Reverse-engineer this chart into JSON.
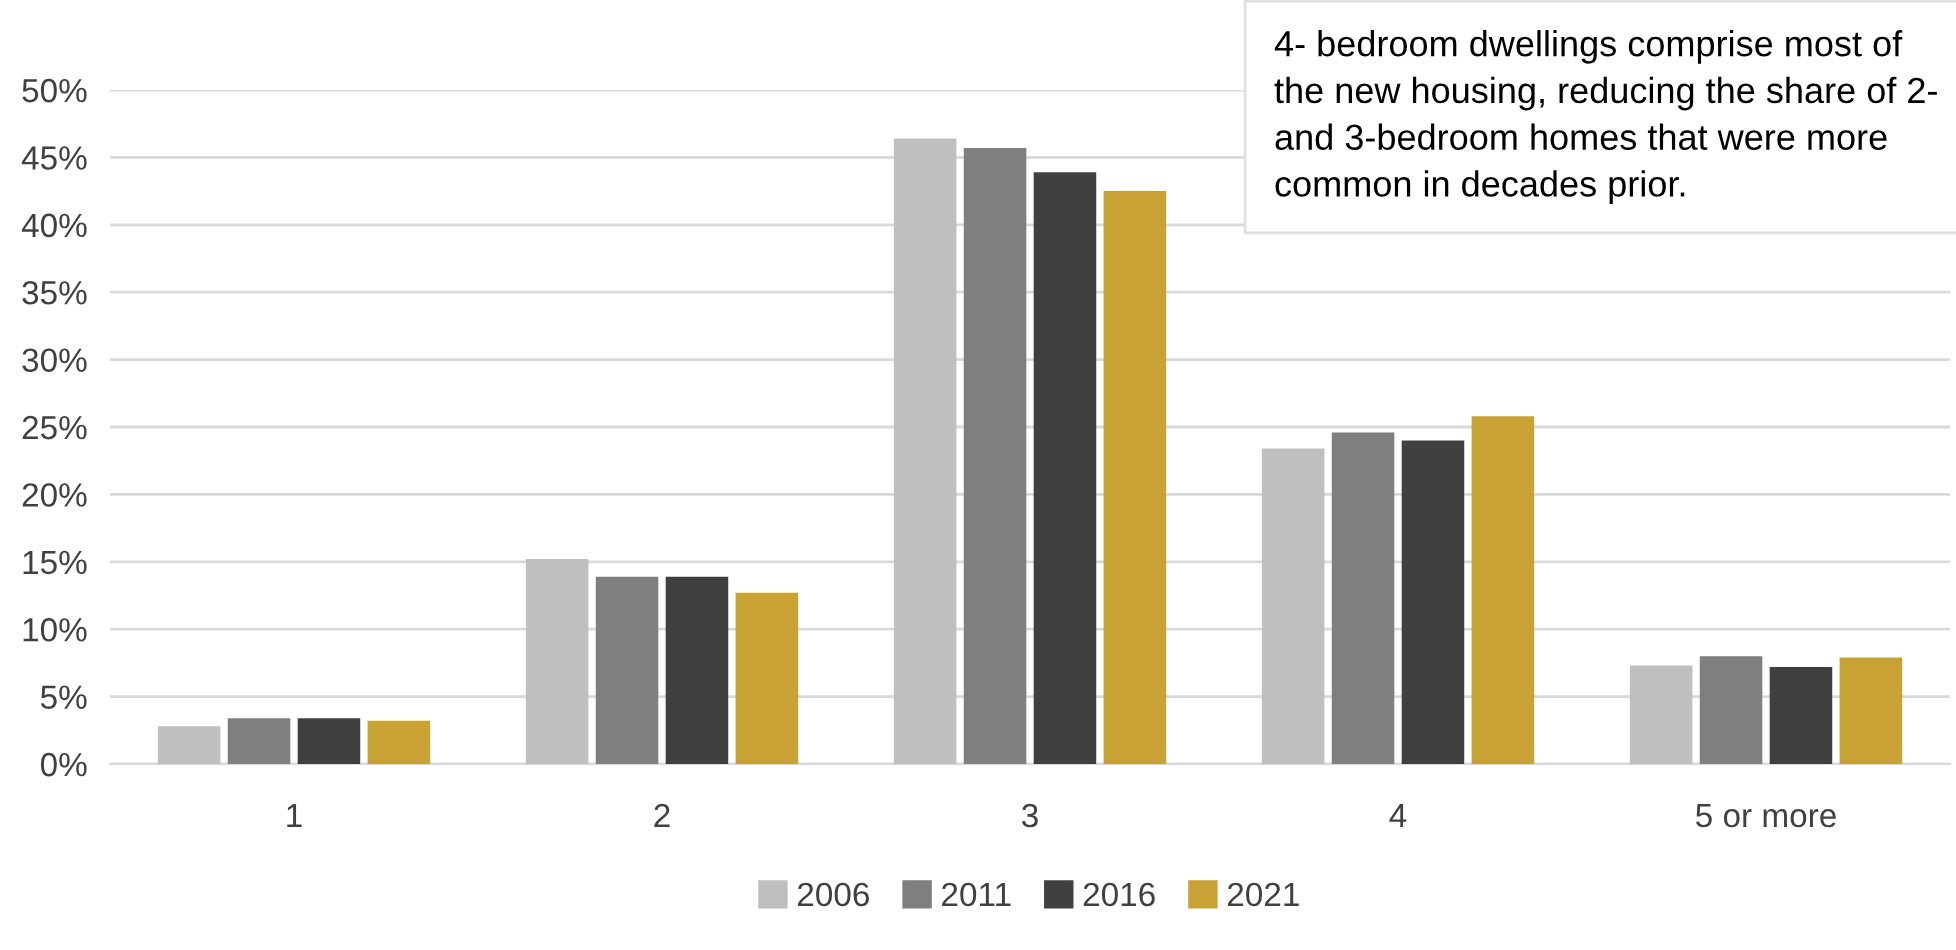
{
  "chart_data": {
    "type": "bar",
    "categories": [
      "1",
      "2",
      "3",
      "4",
      "5 or more"
    ],
    "series": [
      {
        "name": "2006",
        "color": "#bfbfbf",
        "values": [
          2.8,
          15.2,
          46.4,
          23.4,
          7.3
        ]
      },
      {
        "name": "2011",
        "color": "#7f7f7f",
        "values": [
          3.4,
          13.9,
          45.7,
          24.6,
          8.0
        ]
      },
      {
        "name": "2016",
        "color": "#404040",
        "values": [
          3.4,
          13.9,
          43.9,
          24.0,
          7.2
        ]
      },
      {
        "name": "2021",
        "color": "#c9a236",
        "values": [
          3.2,
          12.7,
          42.5,
          25.8,
          7.9
        ]
      }
    ],
    "ylim": [
      0,
      50
    ],
    "yticks": [
      {
        "value": 0,
        "label": "0%"
      },
      {
        "value": 5,
        "label": "5%"
      },
      {
        "value": 10,
        "label": "10%"
      },
      {
        "value": 15,
        "label": "15%"
      },
      {
        "value": 20,
        "label": "20%"
      },
      {
        "value": 25,
        "label": "25%"
      },
      {
        "value": 30,
        "label": "30%"
      },
      {
        "value": 35,
        "label": "35%"
      },
      {
        "value": 40,
        "label": "40%"
      },
      {
        "value": 45,
        "label": "45%"
      },
      {
        "value": 50,
        "label": "50%"
      }
    ],
    "grid": "y",
    "legend": "bottom",
    "annotations": [
      "4- bedroom dwellings comprise most of the new housing, reducing the share of 2- and 3-bedroom homes that were more common in decades prior."
    ]
  }
}
